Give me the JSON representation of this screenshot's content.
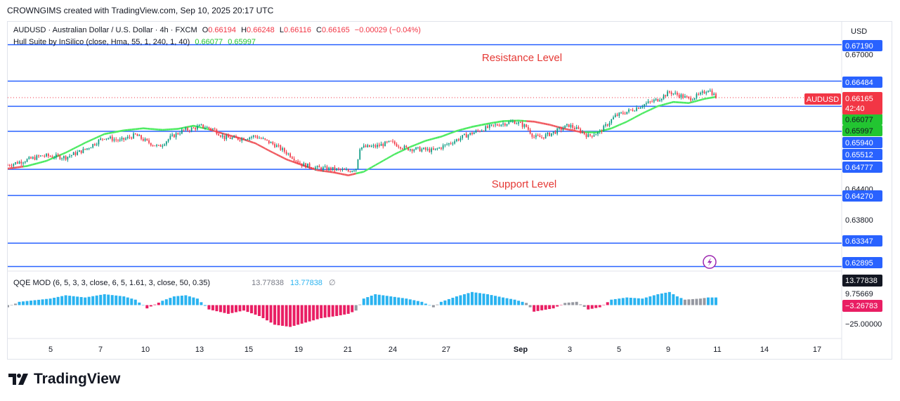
{
  "header": {
    "text": "CROWNGIMS created with TradingView.com, Sep 10, 2025 20:17 UTC"
  },
  "legend": {
    "symbol": "AUDUSD · Australian Dollar / U.S. Dollar · 4h · FXCM",
    "o_label": "O",
    "o_value": "0.66194",
    "h_label": "H",
    "h_value": "0.66248",
    "l_label": "L",
    "l_value": "0.66116",
    "c_label": "C",
    "c_value": "0.66165",
    "change": "−0.00029 (−0.04%)",
    "hull_name": "Hull Suite by InSilico (close, Hma, 55, 1, 240, 1, 40)",
    "hull_v1": "0.66077",
    "hull_v2": "0.65997"
  },
  "price_axis": {
    "currency": "USD",
    "ticks": [
      "0.67000",
      "0.64400",
      "0.63800"
    ]
  },
  "level_labels": [
    "0.67190",
    "0.66484",
    "0.66077",
    "0.65997",
    "0.65940",
    "0.65512",
    "0.64777",
    "0.64270",
    "0.63347",
    "0.62895"
  ],
  "symbol_tag": {
    "name": "AUDUSD",
    "price": "0.66165",
    "countdown": "42:40"
  },
  "annotations": {
    "resistance": "Resistance Level",
    "support": "Support Level"
  },
  "qqe": {
    "title": "QQE MOD (6, 5, 3, 3, close, 6, 5, 1.61, 3, close, 50, 0.35)",
    "v1": "13.77838",
    "v2": "13.77838",
    "null_sym": "∅",
    "axis_ticks": [
      "9.75669",
      "−25.00000"
    ],
    "tag_pos": "13.77838",
    "tag_neg": "−3.26783"
  },
  "time_axis": {
    "labels": [
      "5",
      "7",
      "10",
      "13",
      "15",
      "19",
      "21",
      "24",
      "27",
      "Sep",
      "3",
      "5",
      "9",
      "11",
      "14",
      "17"
    ]
  },
  "brand": {
    "name": "TradingView"
  },
  "colors": {
    "up": "#089981",
    "down": "#f23645",
    "hull_up": "#4cea62",
    "hull_down": "#f05a60",
    "level": "#2962ff",
    "qqe_up": "#2ab3f0",
    "qqe_down": "#e91e63",
    "qqe_gray": "#9598a1"
  },
  "chart_data": {
    "type": "candlestick",
    "horizontal_levels": [
      0.6719,
      0.66484,
      0.66077,
      0.65997,
      0.6594,
      0.65512,
      0.64777,
      0.6427,
      0.63347,
      0.62895
    ],
    "close_path": [
      [
        0,
        0.6486
      ],
      [
        8,
        0.6494
      ],
      [
        18,
        0.6504
      ],
      [
        30,
        0.6501
      ],
      [
        40,
        0.6516
      ],
      [
        50,
        0.654
      ],
      [
        58,
        0.6533
      ],
      [
        66,
        0.6544
      ],
      [
        72,
        0.6531
      ],
      [
        78,
        0.6521
      ],
      [
        84,
        0.6539
      ],
      [
        90,
        0.6552
      ],
      [
        95,
        0.6556
      ],
      [
        100,
        0.6561
      ],
      [
        106,
        0.6556
      ],
      [
        112,
        0.6539
      ],
      [
        120,
        0.6537
      ],
      [
        128,
        0.6542
      ],
      [
        138,
        0.6525
      ],
      [
        146,
        0.6505
      ],
      [
        152,
        0.6487
      ],
      [
        160,
        0.648
      ],
      [
        168,
        0.6478
      ],
      [
        176,
        0.6474
      ],
      [
        180,
        0.648
      ],
      [
        182,
        0.652
      ],
      [
        190,
        0.6522
      ],
      [
        198,
        0.653
      ],
      [
        206,
        0.6518
      ],
      [
        214,
        0.6516
      ],
      [
        220,
        0.6514
      ],
      [
        226,
        0.6524
      ],
      [
        236,
        0.6542
      ],
      [
        246,
        0.6556
      ],
      [
        254,
        0.6565
      ],
      [
        262,
        0.657
      ],
      [
        268,
        0.656
      ],
      [
        272,
        0.654
      ],
      [
        276,
        0.654
      ],
      [
        282,
        0.6549
      ],
      [
        290,
        0.6563
      ],
      [
        296,
        0.6552
      ],
      [
        300,
        0.6542
      ],
      [
        306,
        0.655
      ],
      [
        314,
        0.6581
      ],
      [
        322,
        0.6592
      ],
      [
        330,
        0.6605
      ],
      [
        336,
        0.6613
      ],
      [
        342,
        0.6627
      ],
      [
        348,
        0.662
      ],
      [
        352,
        0.6614
      ],
      [
        358,
        0.6622
      ],
      [
        362,
        0.6633
      ],
      [
        366,
        0.6618
      ]
    ],
    "hull_path": [
      [
        0,
        0.6479
      ],
      [
        10,
        0.6484
      ],
      [
        20,
        0.6494
      ],
      [
        30,
        0.651
      ],
      [
        40,
        0.6529
      ],
      [
        50,
        0.6546
      ],
      [
        60,
        0.6553
      ],
      [
        70,
        0.6557
      ],
      [
        80,
        0.6554
      ],
      [
        88,
        0.6556
      ],
      [
        96,
        0.6562
      ],
      [
        104,
        0.6555
      ],
      [
        112,
        0.6546
      ],
      [
        120,
        0.6538
      ],
      [
        128,
        0.6528
      ],
      [
        136,
        0.6512
      ],
      [
        144,
        0.6497
      ],
      [
        152,
        0.6486
      ],
      [
        160,
        0.6476
      ],
      [
        168,
        0.6472
      ],
      [
        176,
        0.6466
      ],
      [
        184,
        0.6473
      ],
      [
        192,
        0.649
      ],
      [
        200,
        0.6507
      ],
      [
        208,
        0.6521
      ],
      [
        216,
        0.6533
      ],
      [
        224,
        0.6541
      ],
      [
        232,
        0.6552
      ],
      [
        240,
        0.656
      ],
      [
        248,
        0.6566
      ],
      [
        256,
        0.6571
      ],
      [
        264,
        0.6572
      ],
      [
        272,
        0.657
      ],
      [
        280,
        0.6564
      ],
      [
        288,
        0.6556
      ],
      [
        296,
        0.655
      ],
      [
        304,
        0.6549
      ],
      [
        312,
        0.6557
      ],
      [
        320,
        0.657
      ],
      [
        328,
        0.6586
      ],
      [
        336,
        0.66
      ],
      [
        344,
        0.6608
      ],
      [
        352,
        0.6606
      ],
      [
        360,
        0.6614
      ],
      [
        366,
        0.6618
      ]
    ],
    "hull_color_changes": [
      [
        0,
        "down"
      ],
      [
        8,
        "up"
      ],
      [
        104,
        "down"
      ],
      [
        180,
        "up"
      ],
      [
        268,
        "down"
      ],
      [
        298,
        "up"
      ]
    ],
    "qqe_histogram": [
      [
        0,
        -2,
        "g"
      ],
      [
        6,
        3,
        "b"
      ],
      [
        22,
        6,
        "b"
      ],
      [
        30,
        9,
        "b"
      ],
      [
        40,
        7,
        "b"
      ],
      [
        50,
        10,
        "b"
      ],
      [
        60,
        8,
        "b"
      ],
      [
        66,
        5,
        "b"
      ],
      [
        72,
        -3,
        "r"
      ],
      [
        80,
        4,
        "b"
      ],
      [
        86,
        8,
        "b"
      ],
      [
        92,
        9,
        "b"
      ],
      [
        98,
        6,
        "b"
      ],
      [
        104,
        -4,
        "r"
      ],
      [
        114,
        -8,
        "r"
      ],
      [
        122,
        -5,
        "r"
      ],
      [
        130,
        -10,
        "r"
      ],
      [
        138,
        -18,
        "r"
      ],
      [
        146,
        -20,
        "r"
      ],
      [
        154,
        -16,
        "r"
      ],
      [
        162,
        -12,
        "r"
      ],
      [
        170,
        -10,
        "r"
      ],
      [
        176,
        -8,
        "r"
      ],
      [
        180,
        -5,
        "g"
      ],
      [
        184,
        6,
        "b"
      ],
      [
        190,
        10,
        "b"
      ],
      [
        198,
        8,
        "b"
      ],
      [
        206,
        6,
        "b"
      ],
      [
        214,
        3,
        "b"
      ],
      [
        220,
        -2,
        "g"
      ],
      [
        224,
        3,
        "b"
      ],
      [
        232,
        8,
        "b"
      ],
      [
        240,
        12,
        "b"
      ],
      [
        248,
        10,
        "b"
      ],
      [
        256,
        7,
        "b"
      ],
      [
        262,
        5,
        "b"
      ],
      [
        268,
        2,
        "g"
      ],
      [
        272,
        -6,
        "r"
      ],
      [
        282,
        -3,
        "r"
      ],
      [
        288,
        2,
        "g"
      ],
      [
        294,
        3,
        "g"
      ],
      [
        300,
        -4,
        "r"
      ],
      [
        306,
        -2,
        "r"
      ],
      [
        312,
        5,
        "b"
      ],
      [
        320,
        7,
        "b"
      ],
      [
        328,
        6,
        "b"
      ],
      [
        336,
        10,
        "b"
      ],
      [
        342,
        12,
        "b"
      ],
      [
        346,
        8,
        "b"
      ],
      [
        350,
        5,
        "g"
      ],
      [
        358,
        6,
        "g"
      ],
      [
        362,
        7,
        "b"
      ],
      [
        366,
        7,
        "b"
      ]
    ],
    "bars_total": 367,
    "price_range": [
      0.6282,
      0.6728
    ],
    "qqe_range": [
      -30,
      28
    ]
  }
}
